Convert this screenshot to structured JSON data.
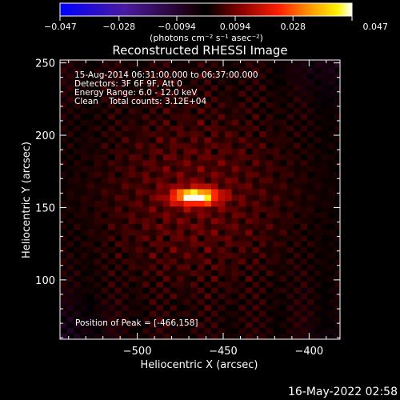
{
  "timestamp": "16-May-2022 02:58",
  "colorbar": {
    "tick_labels": [
      "-0.047",
      "-0.028",
      "-0.0094",
      "0.0094",
      "0.028",
      "0.047"
    ],
    "range": [
      -0.047,
      0.047
    ],
    "colormap": "blue-purple-black-red-orange-yellow-white",
    "units_label": "(photons cm⁻² s⁻¹ asec⁻²)"
  },
  "chart_data": {
    "type": "heatmap",
    "title": "Reconstructed RHESSI Image",
    "xlabel": "Heliocentric X (arcsec)",
    "ylabel": "Heliocentric Y (arcsec)",
    "xlim": [
      -545,
      -382
    ],
    "ylim": [
      59,
      252
    ],
    "x_ticks": [
      -500,
      -450,
      -400
    ],
    "x_tick_labels": [
      "−500",
      "−450",
      "−400"
    ],
    "y_ticks": [
      100,
      150,
      200,
      250
    ],
    "y_tick_labels": [
      "100",
      "150",
      "200",
      "250"
    ],
    "annotations": [
      "15-Aug-2014 06:31:00.000 to 06:37:00.000",
      "Detectors: 3F 6F 9F, Att 0",
      "Energy Range: 6.0 - 12.0 keV",
      "Clean    Total counts: 3.12E+04"
    ],
    "peak_label": "Position of Peak = [-466,158]",
    "peak": {
      "x": -466,
      "y": 158
    },
    "source": {
      "x": -466,
      "y": 158,
      "sigma_x": 9,
      "sigma_y": 3.8,
      "peak_value": 0.047
    },
    "background_level": 0.009
  }
}
